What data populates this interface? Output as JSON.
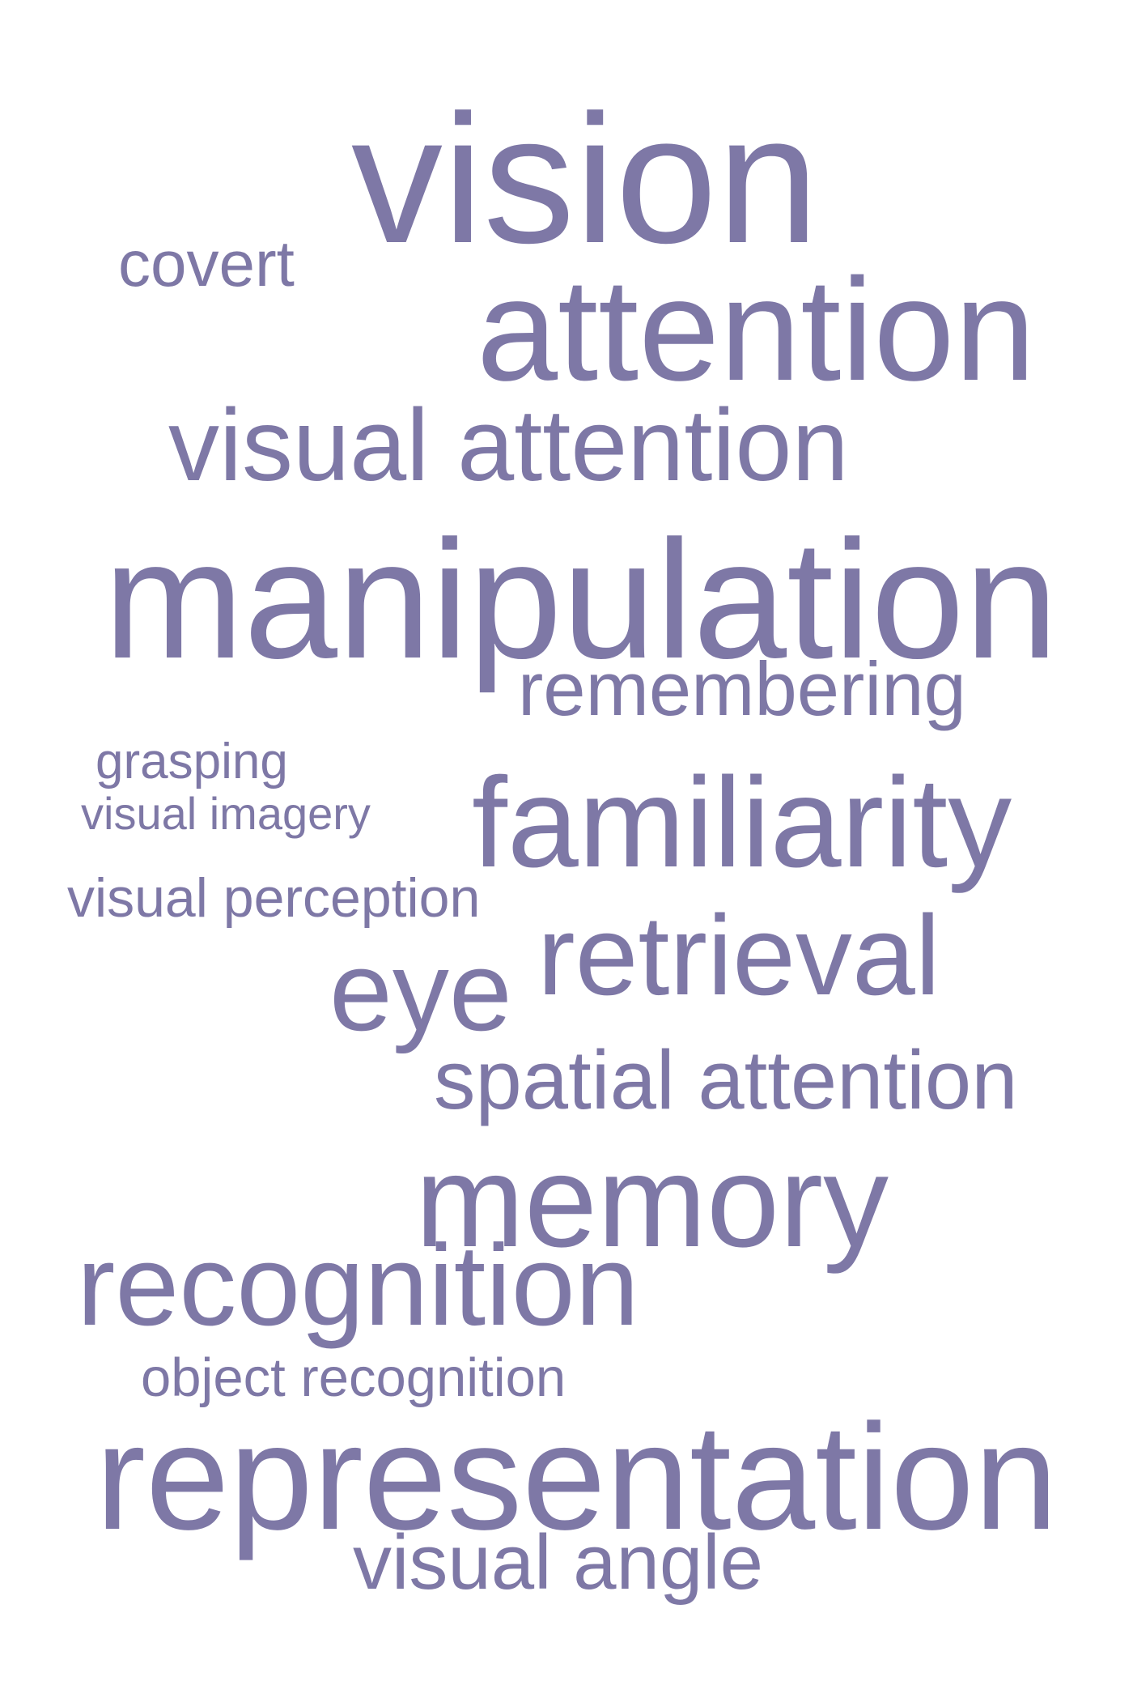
{
  "word_cloud": {
    "color": "#7e78a6",
    "words": {
      "vision": "vision",
      "covert": "covert",
      "attention": "attention",
      "visual_attention": "visual attention",
      "manipulation": "manipulation",
      "remembering": "remembering",
      "grasping": "grasping",
      "visual_imagery": "visual imagery",
      "familiarity": "familiarity",
      "visual_perception": "visual perception",
      "eye": "eye",
      "retrieval": "retrieval",
      "spatial_attention": "spatial attention",
      "memory": "memory",
      "recognition": "recognition",
      "object_recognition": "object recognition",
      "representation": "representation",
      "visual_angle": "visual angle"
    }
  }
}
